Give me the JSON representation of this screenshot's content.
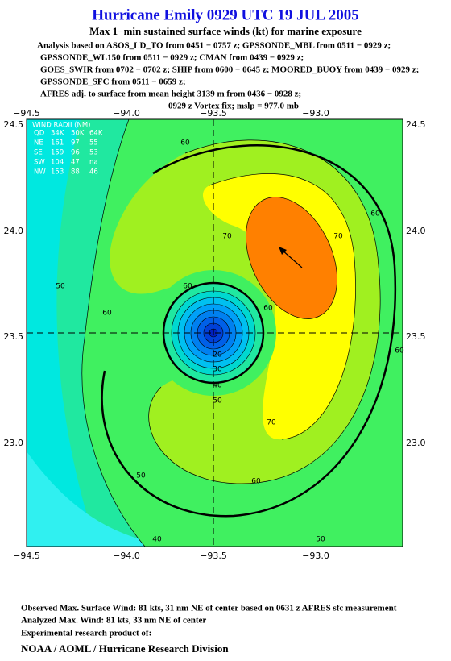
{
  "header": {
    "title": "Hurricane Emily 0929 UTC 19 JUL 2005",
    "subtitle": "Max 1−min sustained surface winds (kt) for marine exposure",
    "lines": [
      "Analysis based on  ASOS_LD_TO from 0451 − 0757 z;  GPSSONDE_MBL from 0511 − 0929 z;",
      "GPSSONDE_WL150 from 0511 − 0929 z;  CMAN from 0439 − 0929 z;",
      "GOES_SWIR from 0702 − 0702 z;  SHIP from 0600 − 0645 z;  MOORED_BUOY from 0439 − 0929 z;",
      "GPSSONDE_SFC from 0511 − 0659 z;",
      "AFRES adj. to surface from mean height 3139 m from 0436 − 0928 z;",
      "0929 z Vortex fix; mslp = 977.0 mb"
    ]
  },
  "map": {
    "lon_ticks": [
      "−94.5",
      "−94.0",
      "−93.5",
      "−93.0"
    ],
    "lat_ticks": [
      "24.5",
      "24.0",
      "23.5",
      "23.0"
    ],
    "wind_radii": {
      "title": "WIND RADII (NM)",
      "header": [
        "QD",
        "34K",
        "50K",
        "64K"
      ],
      "rows": [
        [
          "NE",
          "161",
          "97",
          "55"
        ],
        [
          "SE",
          "159",
          "96",
          "53"
        ],
        [
          "SW",
          "104",
          "47",
          "na"
        ],
        [
          "NW",
          "153",
          "88",
          "46"
        ]
      ]
    },
    "contour_labels": [
      "60",
      "50",
      "60",
      "70",
      "60",
      "60",
      "70",
      "70",
      "20",
      "30",
      "40",
      "50",
      "50",
      "60",
      "40",
      "50",
      "60",
      "60"
    ]
  },
  "footer": {
    "lines": [
      "Observed Max. Surface Wind: 81 kts, 31 nm NE of center based on 0631 z AFRES sfc measurement",
      "Analyzed Max. Wind: 81 kts, 33 nm NE of center",
      "Experimental research product of:"
    ],
    "credit": "NOAA / AOML / Hurricane Research Division"
  }
}
